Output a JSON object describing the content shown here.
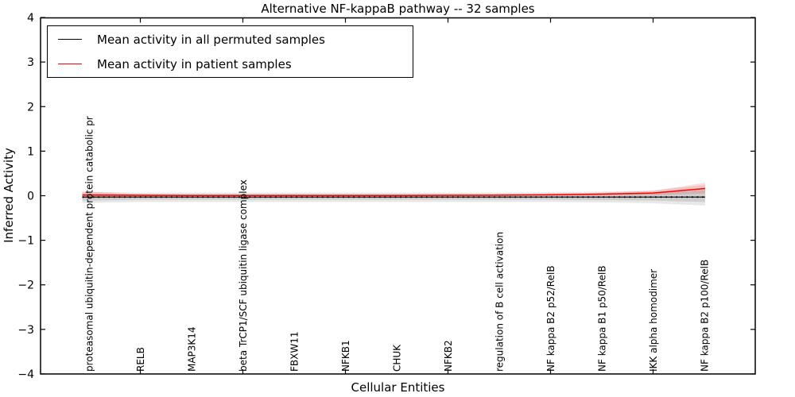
{
  "title": "Alternative NF-kappaB pathway -- 32 samples",
  "legend": {
    "items": [
      {
        "label": "Mean activity in all permuted samples",
        "color": "#000000"
      },
      {
        "label": "Mean activity in patient samples",
        "color": "#ff0000"
      }
    ]
  },
  "chart_data": {
    "type": "line",
    "title": "Alternative NF-kappaB pathway -- 32 samples",
    "xlabel": "Cellular Entities",
    "ylabel": "Inferred Activity",
    "ylim": [
      -4,
      4
    ],
    "yticks": [
      4,
      3,
      2,
      1,
      0,
      -1,
      -2,
      -3,
      -4
    ],
    "ytick_labels": [
      "4",
      "3",
      "2",
      "1",
      "0",
      "−1",
      "−2",
      "−3",
      "−4"
    ],
    "grid": false,
    "legend_position": "upper left",
    "categories": [
      "proteasomal ubiquitin-dependent protein catabolic pr",
      "RELB",
      "MAP3K14",
      "beta TrCP1/SCF ubiquitin ligase complex",
      "FBXW11",
      "NFKB1",
      "CHUK",
      "NFKB2",
      "regulation of B cell activation",
      "NF kappa B2 p52/RelB",
      "NF kappa B1 p50/RelB",
      "IKK alpha homodimer",
      "NF kappa B2 p100/RelB"
    ],
    "series": [
      {
        "name": "Mean activity in all permuted samples",
        "color": "#000000",
        "marker": "dot",
        "values": [
          -0.03,
          -0.03,
          -0.03,
          -0.03,
          -0.03,
          -0.03,
          -0.03,
          -0.03,
          -0.03,
          -0.03,
          -0.03,
          -0.03,
          -0.03
        ]
      },
      {
        "name": "Mean activity in patient samples",
        "color": "#ff0000",
        "marker": "none",
        "values": [
          0.015,
          0.008,
          0.005,
          0.005,
          0.005,
          0.005,
          0.005,
          0.008,
          0.012,
          0.02,
          0.035,
          0.06,
          0.16
        ]
      }
    ],
    "bands": [
      {
        "name": "permuted-range-outer",
        "color": "#b8b8b8",
        "opacity": 0.32,
        "hi": [
          0.09,
          0.07,
          0.07,
          0.07,
          0.07,
          0.07,
          0.07,
          0.07,
          0.07,
          0.08,
          0.09,
          0.12,
          0.24
        ],
        "lo": [
          -0.16,
          -0.14,
          -0.14,
          -0.14,
          -0.14,
          -0.14,
          -0.14,
          -0.14,
          -0.14,
          -0.14,
          -0.15,
          -0.17,
          -0.22
        ]
      },
      {
        "name": "permuted-range-inner",
        "color": "#9a9a9a",
        "opacity": 0.32,
        "hi": [
          0.05,
          0.04,
          0.04,
          0.04,
          0.04,
          0.04,
          0.04,
          0.04,
          0.04,
          0.04,
          0.05,
          0.06,
          0.13
        ],
        "lo": [
          -0.11,
          -0.09,
          -0.09,
          -0.09,
          -0.09,
          -0.09,
          -0.09,
          -0.09,
          -0.09,
          -0.09,
          -0.1,
          -0.11,
          -0.14
        ]
      },
      {
        "name": "patient-range",
        "color": "#ff0000",
        "opacity": 0.14,
        "hi": [
          0.09,
          0.03,
          0.02,
          0.02,
          0.02,
          0.02,
          0.02,
          0.02,
          0.03,
          0.05,
          0.07,
          0.11,
          0.29
        ],
        "lo": [
          -0.06,
          -0.02,
          -0.01,
          -0.01,
          -0.01,
          -0.01,
          -0.01,
          -0.01,
          0.0,
          0.0,
          0.0,
          0.01,
          0.05
        ]
      }
    ],
    "n_marker_points": 120
  }
}
